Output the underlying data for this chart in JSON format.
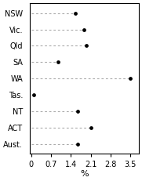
{
  "categories": [
    "NSW",
    "Vic.",
    "Qld",
    "SA",
    "WA",
    "Tas.",
    "NT",
    "ACT",
    "Aust."
  ],
  "values": [
    1.55,
    1.85,
    1.95,
    0.95,
    3.5,
    0.1,
    1.65,
    2.1,
    1.65
  ],
  "dot_color": "#000000",
  "line_color": "#aaaaaa",
  "xlabel": "%",
  "xlim": [
    -0.05,
    3.8
  ],
  "xticks": [
    0,
    0.7,
    1.4,
    2.1,
    2.8,
    3.5
  ],
  "xtick_labels": [
    "0",
    "0.7",
    "1.4",
    "2.1",
    "2.8",
    "3.5"
  ],
  "background_color": "#ffffff",
  "dot_size": 12,
  "xlabel_fontsize": 8,
  "tick_fontsize": 7,
  "line_width": 0.8
}
